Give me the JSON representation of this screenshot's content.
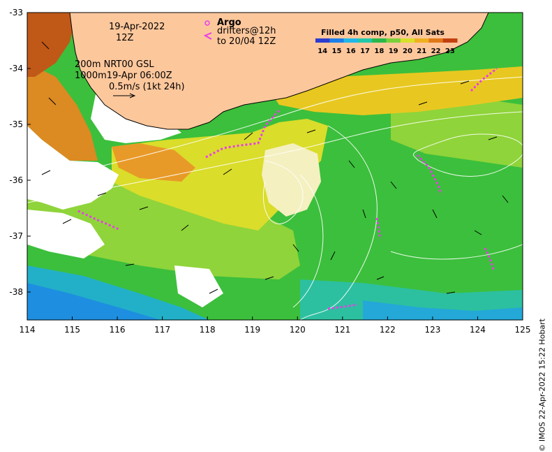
{
  "map": {
    "date_line1": "19-Apr-2022",
    "date_line2": "12Z",
    "contour_info_line1": "200m  NRT00 GSL",
    "contour_info_line2": "1000m19-Apr 06:00Z",
    "scale_label": "0.5m/s (1kt 24h)",
    "argo_label": "Argo",
    "drifters_line1": "drifters@12h",
    "drifters_line2": "to 20/04 12Z",
    "legend_title": "Filled 4h comp, p50, All Sats",
    "legend_values": [
      "14",
      "15",
      "16",
      "17",
      "18",
      "19",
      "20",
      "21",
      "22",
      "23"
    ],
    "legend_colors": [
      "#2b3ccf",
      "#1b7fe8",
      "#1fb8e8",
      "#1fc8a8",
      "#2bb84a",
      "#7ad13a",
      "#d9e02a",
      "#f0b020",
      "#e07818",
      "#c24010"
    ],
    "credit": "© IMOS 22-Apr-2022 15:22 Hobart",
    "land_color": "#fdc79c",
    "drifter_color": "#e83ee8",
    "x_ticks": [
      "114",
      "115",
      "116",
      "117",
      "118",
      "119",
      "120",
      "121",
      "122",
      "123",
      "124",
      "125"
    ],
    "y_ticks": [
      "-33",
      "-34",
      "-35",
      "-36",
      "-37",
      "-38"
    ]
  }
}
